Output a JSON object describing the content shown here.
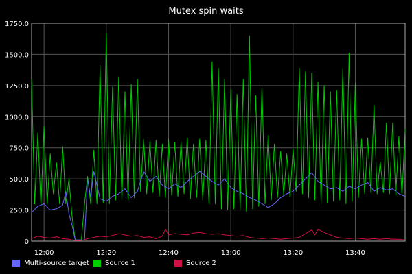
{
  "chart_data": {
    "type": "line",
    "title": "Mutex spin waits",
    "xlabel": "",
    "ylabel": "",
    "ylim": [
      0,
      1750
    ],
    "y_ticks": [
      {
        "value": 0,
        "label": "0"
      },
      {
        "value": 250,
        "label": "250.0"
      },
      {
        "value": 500,
        "label": "500.0"
      },
      {
        "value": 750,
        "label": "750.0"
      },
      {
        "value": 1000,
        "label": "1000.0"
      },
      {
        "value": 1250,
        "label": "1250.0"
      },
      {
        "value": 1500,
        "label": "1500.0"
      },
      {
        "value": 1750,
        "label": "1750.0"
      }
    ],
    "x_start": "11:56",
    "x_end": "13:56",
    "x_ticks": [
      "12:00",
      "12:20",
      "12:40",
      "13:00",
      "13:20",
      "13:40"
    ],
    "grid": true,
    "legend_position": "bottom",
    "colors": {
      "background": "#000000",
      "grid": "#555555",
      "axis": "#aaaaaa",
      "text": "#ffffff"
    },
    "series": [
      {
        "name": "Multi-source target",
        "color": "#6666ff",
        "points": [
          [
            "11:56",
            230
          ],
          [
            "11:58",
            280
          ],
          [
            "12:00",
            300
          ],
          [
            "12:02",
            250
          ],
          [
            "12:04",
            260
          ],
          [
            "12:06",
            290
          ],
          [
            "12:07",
            400
          ],
          [
            "12:08",
            220
          ],
          [
            "12:09",
            130
          ],
          [
            "12:10",
            10
          ],
          [
            "12:11",
            10
          ],
          [
            "12:12",
            10
          ],
          [
            "12:13",
            10
          ],
          [
            "12:14",
            500
          ],
          [
            "12:15",
            350
          ],
          [
            "12:16",
            560
          ],
          [
            "12:18",
            340
          ],
          [
            "12:20",
            320
          ],
          [
            "12:22",
            360
          ],
          [
            "12:24",
            380
          ],
          [
            "12:26",
            420
          ],
          [
            "12:28",
            350
          ],
          [
            "12:30",
            400
          ],
          [
            "12:32",
            560
          ],
          [
            "12:34",
            480
          ],
          [
            "12:36",
            520
          ],
          [
            "12:38",
            450
          ],
          [
            "12:40",
            420
          ],
          [
            "12:42",
            460
          ],
          [
            "12:44",
            430
          ],
          [
            "12:46",
            480
          ],
          [
            "12:48",
            520
          ],
          [
            "12:50",
            560
          ],
          [
            "12:52",
            520
          ],
          [
            "12:54",
            480
          ],
          [
            "12:56",
            450
          ],
          [
            "12:58",
            500
          ],
          [
            "13:00",
            430
          ],
          [
            "13:02",
            400
          ],
          [
            "13:04",
            380
          ],
          [
            "13:06",
            350
          ],
          [
            "13:08",
            330
          ],
          [
            "13:10",
            300
          ],
          [
            "13:12",
            270
          ],
          [
            "13:14",
            300
          ],
          [
            "13:16",
            350
          ],
          [
            "13:18",
            380
          ],
          [
            "13:20",
            400
          ],
          [
            "13:22",
            450
          ],
          [
            "13:24",
            500
          ],
          [
            "13:26",
            550
          ],
          [
            "13:28",
            480
          ],
          [
            "13:30",
            450
          ],
          [
            "13:32",
            420
          ],
          [
            "13:34",
            430
          ],
          [
            "13:36",
            400
          ],
          [
            "13:38",
            440
          ],
          [
            "13:40",
            420
          ],
          [
            "13:42",
            450
          ],
          [
            "13:44",
            470
          ],
          [
            "13:46",
            400
          ],
          [
            "13:48",
            430
          ],
          [
            "13:50",
            410
          ],
          [
            "13:52",
            420
          ],
          [
            "13:54",
            380
          ],
          [
            "13:56",
            360
          ]
        ]
      },
      {
        "name": "Source 1",
        "color": "#00cc00",
        "points": [
          [
            "11:56",
            1300
          ],
          [
            "11:57",
            300
          ],
          [
            "11:58",
            870
          ],
          [
            "11:59",
            280
          ],
          [
            "12:00",
            920
          ],
          [
            "12:01",
            300
          ],
          [
            "12:02",
            700
          ],
          [
            "12:03",
            380
          ],
          [
            "12:04",
            630
          ],
          [
            "12:05",
            300
          ],
          [
            "12:06",
            760
          ],
          [
            "12:07",
            300
          ],
          [
            "12:08",
            500
          ],
          [
            "12:09",
            200
          ],
          [
            "12:10",
            10
          ],
          [
            "12:12",
            10
          ],
          [
            "12:13",
            300
          ],
          [
            "12:14",
            520
          ],
          [
            "12:15",
            300
          ],
          [
            "12:16",
            730
          ],
          [
            "12:17",
            300
          ],
          [
            "12:18",
            1410
          ],
          [
            "12:19",
            310
          ],
          [
            "12:20",
            1670
          ],
          [
            "12:21",
            300
          ],
          [
            "12:22",
            1240
          ],
          [
            "12:23",
            330
          ],
          [
            "12:24",
            1320
          ],
          [
            "12:25",
            320
          ],
          [
            "12:26",
            1200
          ],
          [
            "12:27",
            330
          ],
          [
            "12:28",
            1260
          ],
          [
            "12:29",
            350
          ],
          [
            "12:30",
            1300
          ],
          [
            "12:31",
            400
          ],
          [
            "12:32",
            820
          ],
          [
            "12:33",
            380
          ],
          [
            "12:34",
            800
          ],
          [
            "12:35",
            390
          ],
          [
            "12:36",
            810
          ],
          [
            "12:37",
            360
          ],
          [
            "12:38",
            780
          ],
          [
            "12:39",
            350
          ],
          [
            "12:40",
            820
          ],
          [
            "12:41",
            370
          ],
          [
            "12:42",
            790
          ],
          [
            "12:43",
            360
          ],
          [
            "12:44",
            800
          ],
          [
            "12:45",
            380
          ],
          [
            "12:46",
            830
          ],
          [
            "12:47",
            340
          ],
          [
            "12:48",
            780
          ],
          [
            "12:49",
            350
          ],
          [
            "12:50",
            820
          ],
          [
            "12:51",
            330
          ],
          [
            "12:52",
            810
          ],
          [
            "12:53",
            300
          ],
          [
            "12:54",
            1440
          ],
          [
            "12:55",
            300
          ],
          [
            "12:56",
            1390
          ],
          [
            "12:57",
            260
          ],
          [
            "12:58",
            1300
          ],
          [
            "12:59",
            250
          ],
          [
            "13:00",
            1220
          ],
          [
            "13:01",
            260
          ],
          [
            "13:02",
            1180
          ],
          [
            "13:03",
            250
          ],
          [
            "13:04",
            1300
          ],
          [
            "13:05",
            240
          ],
          [
            "13:06",
            1650
          ],
          [
            "13:07",
            260
          ],
          [
            "13:08",
            1170
          ],
          [
            "13:09",
            280
          ],
          [
            "13:10",
            1250
          ],
          [
            "13:11",
            300
          ],
          [
            "13:12",
            850
          ],
          [
            "13:13",
            330
          ],
          [
            "13:14",
            780
          ],
          [
            "13:15",
            350
          ],
          [
            "13:16",
            720
          ],
          [
            "13:17",
            370
          ],
          [
            "13:18",
            700
          ],
          [
            "13:19",
            360
          ],
          [
            "13:20",
            740
          ],
          [
            "13:21",
            400
          ],
          [
            "13:22",
            1390
          ],
          [
            "13:23",
            380
          ],
          [
            "13:24",
            1360
          ],
          [
            "13:25",
            350
          ],
          [
            "13:26",
            1350
          ],
          [
            "13:27",
            330
          ],
          [
            "13:28",
            1280
          ],
          [
            "13:29",
            300
          ],
          [
            "13:30",
            1250
          ],
          [
            "13:31",
            310
          ],
          [
            "13:32",
            1200
          ],
          [
            "13:33",
            320
          ],
          [
            "13:34",
            1210
          ],
          [
            "13:35",
            330
          ],
          [
            "13:36",
            1390
          ],
          [
            "13:37",
            300
          ],
          [
            "13:38",
            1510
          ],
          [
            "13:39",
            320
          ],
          [
            "13:40",
            1270
          ],
          [
            "13:41",
            350
          ],
          [
            "13:42",
            820
          ],
          [
            "13:43",
            380
          ],
          [
            "13:44",
            830
          ],
          [
            "13:45",
            390
          ],
          [
            "13:46",
            1090
          ],
          [
            "13:47",
            380
          ],
          [
            "13:48",
            640
          ],
          [
            "13:49",
            390
          ],
          [
            "13:50",
            950
          ],
          [
            "13:51",
            380
          ],
          [
            "13:52",
            950
          ],
          [
            "13:53",
            370
          ],
          [
            "13:54",
            840
          ],
          [
            "13:55",
            360
          ],
          [
            "13:56",
            900
          ]
        ]
      },
      {
        "name": "Source 2",
        "color": "#cc1144",
        "points": [
          [
            "11:56",
            20
          ],
          [
            "11:58",
            40
          ],
          [
            "12:00",
            30
          ],
          [
            "12:02",
            25
          ],
          [
            "12:04",
            35
          ],
          [
            "12:06",
            20
          ],
          [
            "12:08",
            15
          ],
          [
            "12:10",
            5
          ],
          [
            "12:12",
            5
          ],
          [
            "12:14",
            20
          ],
          [
            "12:16",
            30
          ],
          [
            "12:18",
            40
          ],
          [
            "12:20",
            35
          ],
          [
            "12:22",
            45
          ],
          [
            "12:24",
            60
          ],
          [
            "12:26",
            50
          ],
          [
            "12:28",
            40
          ],
          [
            "12:30",
            45
          ],
          [
            "12:32",
            30
          ],
          [
            "12:34",
            35
          ],
          [
            "12:36",
            20
          ],
          [
            "12:38",
            40
          ],
          [
            "12:39",
            95
          ],
          [
            "12:40",
            50
          ],
          [
            "12:42",
            60
          ],
          [
            "12:44",
            55
          ],
          [
            "12:46",
            50
          ],
          [
            "12:48",
            65
          ],
          [
            "12:50",
            70
          ],
          [
            "12:52",
            60
          ],
          [
            "12:54",
            55
          ],
          [
            "12:56",
            60
          ],
          [
            "12:58",
            50
          ],
          [
            "13:00",
            45
          ],
          [
            "13:02",
            40
          ],
          [
            "13:04",
            45
          ],
          [
            "13:06",
            30
          ],
          [
            "13:08",
            25
          ],
          [
            "13:10",
            20
          ],
          [
            "13:12",
            25
          ],
          [
            "13:14",
            20
          ],
          [
            "13:16",
            15
          ],
          [
            "13:18",
            20
          ],
          [
            "13:20",
            25
          ],
          [
            "13:22",
            30
          ],
          [
            "13:24",
            60
          ],
          [
            "13:26",
            90
          ],
          [
            "13:27",
            50
          ],
          [
            "13:28",
            95
          ],
          [
            "13:30",
            70
          ],
          [
            "13:32",
            50
          ],
          [
            "13:34",
            30
          ],
          [
            "13:36",
            25
          ],
          [
            "13:38",
            20
          ],
          [
            "13:40",
            25
          ],
          [
            "13:42",
            20
          ],
          [
            "13:44",
            15
          ],
          [
            "13:46",
            20
          ],
          [
            "13:48",
            15
          ],
          [
            "13:50",
            20
          ],
          [
            "13:52",
            15
          ],
          [
            "13:54",
            15
          ],
          [
            "13:56",
            10
          ]
        ]
      }
    ]
  }
}
